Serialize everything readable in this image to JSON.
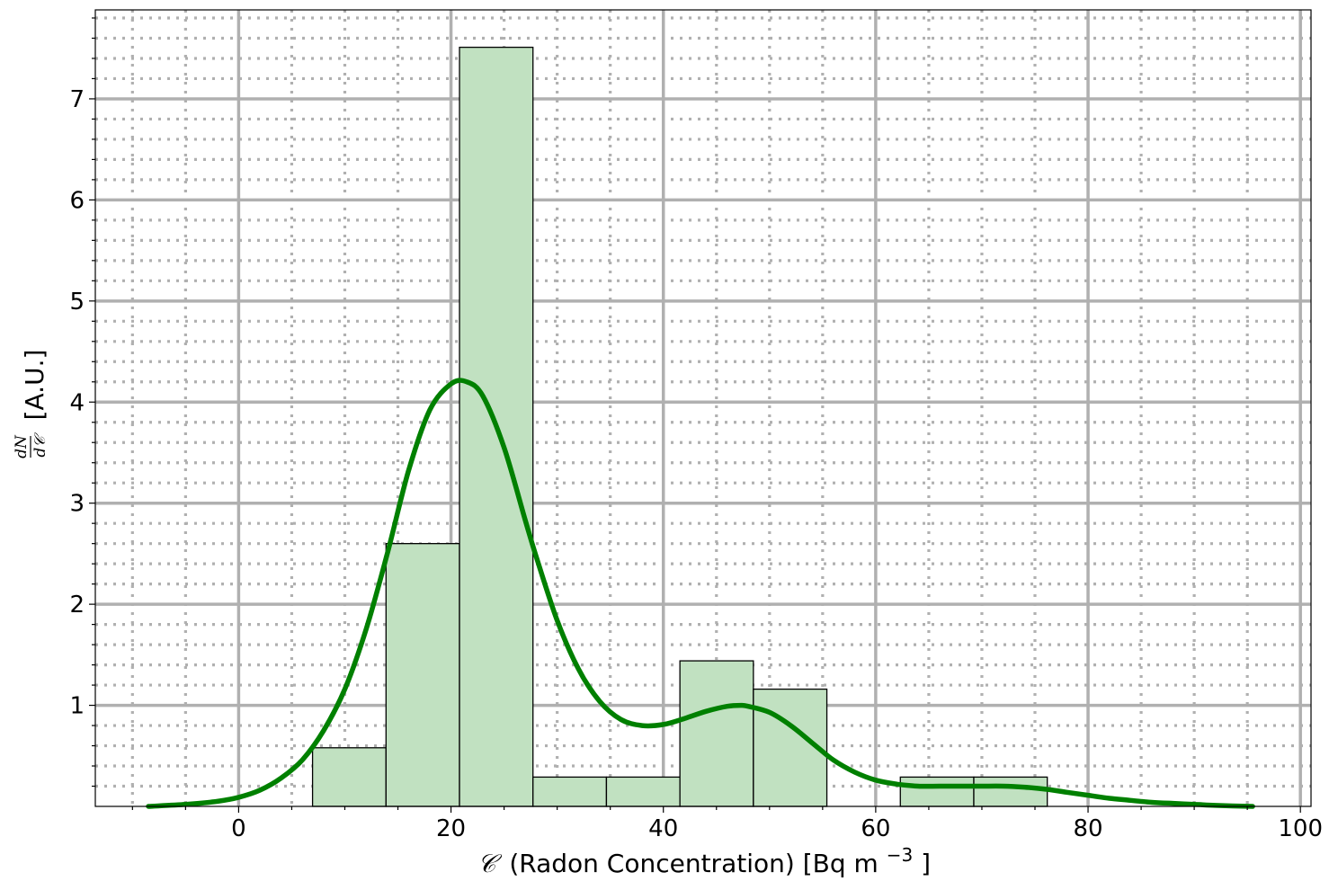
{
  "chart_data": {
    "type": "bar",
    "subtype": "histogram with density curve",
    "xlabel": {
      "symbol": "𝒞",
      "text": "(Radon Concentration) [Bq m",
      "exponent": "−3",
      "close": "]"
    },
    "ylabel": {
      "numerator": "dN",
      "denominator": "d𝒞",
      "unit": "[A.U.]"
    },
    "xlim": [
      -13.5,
      101
    ],
    "ylim": [
      0,
      7.88
    ],
    "xticks": [
      0,
      20,
      40,
      60,
      80,
      100
    ],
    "yticks": [
      1,
      2,
      3,
      4,
      5,
      6,
      7
    ],
    "x_minor_step": 5,
    "y_minor_step": 0.2,
    "grid": true,
    "colors": {
      "bar_fill": "#c1e1c1",
      "bar_edge": "#000000",
      "curve": "#008000",
      "grid": "#b0b0b0"
    },
    "bins": [
      {
        "x0": 6.96,
        "x1": 13.88,
        "value": 0.58
      },
      {
        "x0": 13.88,
        "x1": 20.8,
        "value": 2.6
      },
      {
        "x0": 20.8,
        "x1": 27.72,
        "value": 7.51
      },
      {
        "x0": 27.72,
        "x1": 34.64,
        "value": 0.29
      },
      {
        "x0": 34.64,
        "x1": 41.56,
        "value": 0.29
      },
      {
        "x0": 41.56,
        "x1": 48.48,
        "value": 1.44
      },
      {
        "x0": 48.48,
        "x1": 55.4,
        "value": 1.16
      },
      {
        "x0": 55.4,
        "x1": 62.32,
        "value": 0
      },
      {
        "x0": 62.32,
        "x1": 69.24,
        "value": 0.29
      },
      {
        "x0": 69.24,
        "x1": 76.16,
        "value": 0.29
      }
    ],
    "curve": {
      "x": [
        -8.5,
        -5,
        -2,
        0,
        2,
        4,
        6,
        8,
        10,
        12,
        14,
        16,
        18,
        20,
        21.5,
        23,
        25,
        27,
        28,
        30,
        32,
        34,
        36,
        38,
        40,
        42,
        44,
        46,
        47.3,
        48,
        50,
        52,
        54,
        56,
        58,
        60,
        62,
        64,
        66,
        68,
        70,
        72,
        74,
        76,
        78,
        80,
        82,
        84,
        86,
        88,
        90,
        92,
        95.5
      ],
      "y": [
        0.0,
        0.02,
        0.05,
        0.09,
        0.16,
        0.28,
        0.46,
        0.75,
        1.16,
        1.75,
        2.5,
        3.32,
        3.92,
        4.18,
        4.2,
        4.06,
        3.55,
        2.83,
        2.48,
        1.84,
        1.36,
        1.04,
        0.86,
        0.8,
        0.81,
        0.87,
        0.94,
        0.99,
        1.0,
        0.99,
        0.93,
        0.8,
        0.63,
        0.46,
        0.34,
        0.26,
        0.22,
        0.2,
        0.2,
        0.2,
        0.2,
        0.2,
        0.19,
        0.17,
        0.14,
        0.11,
        0.08,
        0.06,
        0.04,
        0.03,
        0.02,
        0.01,
        0.0
      ]
    }
  }
}
